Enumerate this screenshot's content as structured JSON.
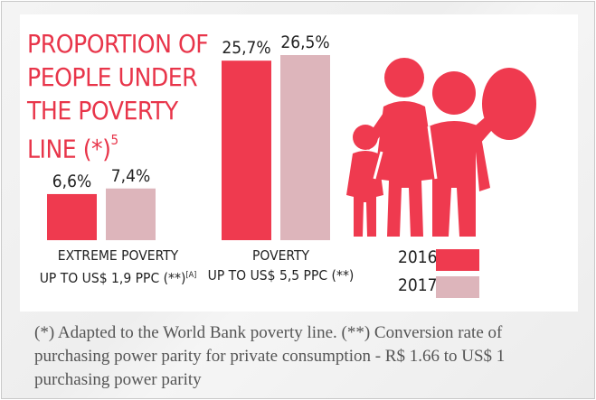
{
  "title": {
    "main": "PROPORTION OF PEOPLE UNDER THE POVERTY LINE (*)",
    "sup": "5"
  },
  "chart_data": {
    "type": "bar",
    "title": "PROPORTION OF PEOPLE UNDER THE POVERTY LINE (*)5",
    "categories": [
      {
        "line1": "EXTREME POVERTY",
        "line2": "UP TO US$ 1,9 PPC (**)",
        "sup": "[A]"
      },
      {
        "line1": "POVERTY",
        "line2": "UP TO US$ 5,5 PPC (**)",
        "sup": ""
      }
    ],
    "series": [
      {
        "name": "2016",
        "values": [
          6.6,
          25.7
        ],
        "labels": [
          "6,6%",
          "25,7%"
        ],
        "color": "#ef3a4f"
      },
      {
        "name": "2017",
        "values": [
          7.4,
          26.5
        ],
        "labels": [
          "7,4%",
          "26,5%"
        ],
        "color": "#ddb5bb"
      }
    ],
    "ylim": [
      0,
      26.5
    ],
    "legend_position": "bottom-right",
    "grid": false
  },
  "note": "(*) Adapted to the World Bank poverty line.  (**) Conversion rate of purchasing power parity for private consumption - R$ 1.66 to US$ 1 purchasing power parity",
  "icon": "family-icon",
  "colors": {
    "accent": "#e8354a",
    "series2016": "#ef3a4f",
    "series2017": "#ddb5bb"
  }
}
